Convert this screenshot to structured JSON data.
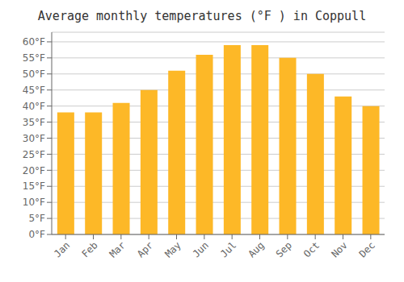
{
  "chart_data": {
    "type": "bar",
    "title": "Average monthly temperatures (°F ) in Coppull",
    "categories": [
      "Jan",
      "Feb",
      "Mar",
      "Apr",
      "May",
      "Jun",
      "Jul",
      "Aug",
      "Sep",
      "Oct",
      "Nov",
      "Dec"
    ],
    "values": [
      38,
      38,
      41,
      45,
      51,
      56,
      59,
      59,
      55,
      50,
      43,
      40
    ],
    "color": "#FDB827",
    "ylim": [
      0,
      63
    ],
    "yticks": [
      {
        "value": 0,
        "label": "0°F"
      },
      {
        "value": 5,
        "label": "5°F"
      },
      {
        "value": 10,
        "label": "10°F"
      },
      {
        "value": 15,
        "label": "15°F"
      },
      {
        "value": 20,
        "label": "20°F"
      },
      {
        "value": 25,
        "label": "25°F"
      },
      {
        "value": 30,
        "label": "30°F"
      },
      {
        "value": 35,
        "label": "35°F"
      },
      {
        "value": 40,
        "label": "40°F"
      },
      {
        "value": 45,
        "label": "45°F"
      },
      {
        "value": 50,
        "label": "50°F"
      },
      {
        "value": 55,
        "label": "55°F"
      },
      {
        "value": 60,
        "label": "60°F"
      }
    ],
    "grid": true
  }
}
